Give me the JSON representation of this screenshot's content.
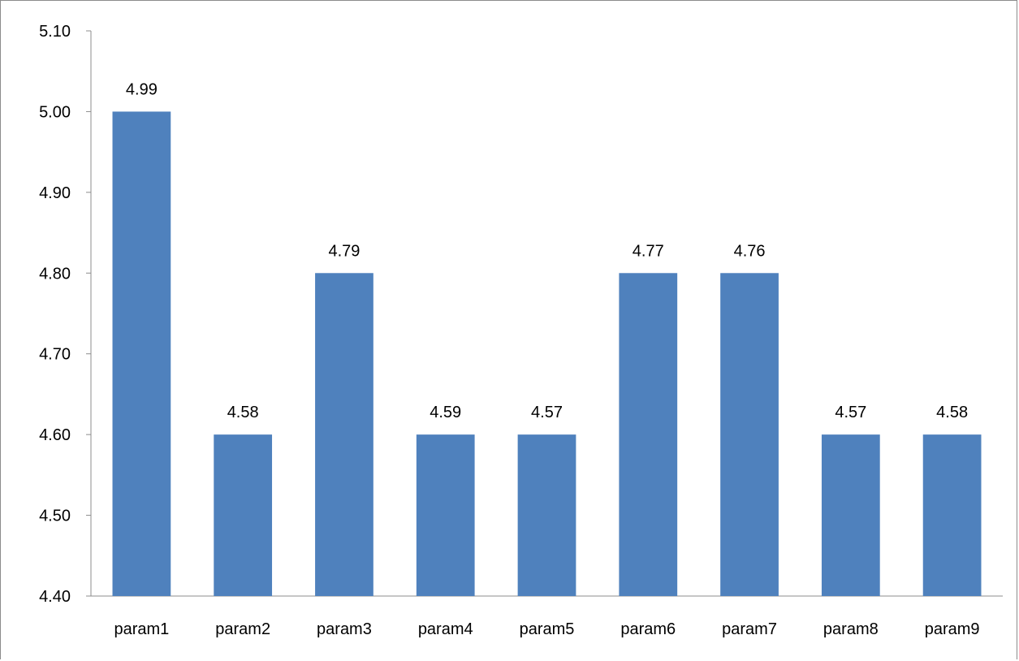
{
  "chart_data": {
    "type": "bar",
    "title": "",
    "xlabel": "",
    "ylabel": "",
    "categories": [
      "param1",
      "param2",
      "param3",
      "param4",
      "param5",
      "param6",
      "param7",
      "param8",
      "param9"
    ],
    "values": [
      5.0,
      4.6,
      4.8,
      4.6,
      4.6,
      4.8,
      4.8,
      4.6,
      4.6
    ],
    "data_labels": [
      "4.99",
      "4.58",
      "4.79",
      "4.59",
      "4.57",
      "4.77",
      "4.76",
      "4.57",
      "4.58"
    ],
    "ylim": [
      4.4,
      5.1
    ],
    "yticks": [
      "4.40",
      "4.50",
      "4.60",
      "4.70",
      "4.80",
      "4.90",
      "5.00",
      "5.10"
    ],
    "ytick_values": [
      4.4,
      4.5,
      4.6,
      4.7,
      4.8,
      4.9,
      5.0,
      5.1
    ],
    "grid": false,
    "legend": "none",
    "bar_color": "#4f81bd",
    "axis_color": "#8c8c8c"
  }
}
